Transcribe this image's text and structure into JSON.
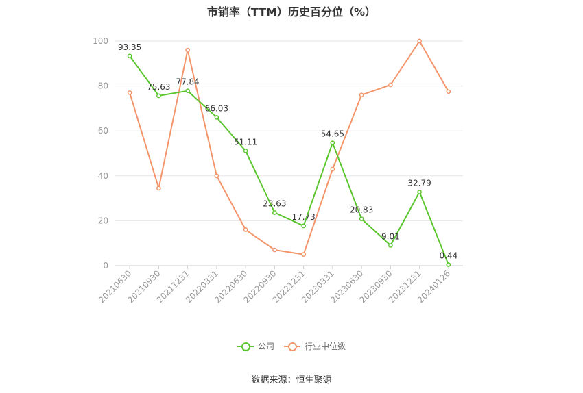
{
  "chart_data": {
    "type": "line",
    "title": "市销率（TTM）历史百分位（%）",
    "categories": [
      "20210630",
      "20210930",
      "20211231",
      "20220331",
      "20220630",
      "20220930",
      "20221231",
      "20230331",
      "20230630",
      "20230930",
      "20231231",
      "20240126"
    ],
    "ylim": [
      0,
      100
    ],
    "yticks": [
      0,
      20,
      40,
      60,
      80,
      100
    ],
    "grid": true,
    "legend_position": "bottom",
    "series": [
      {
        "name": "公司",
        "color": "#5ac52d",
        "show_labels": true,
        "values": [
          93.35,
          75.63,
          77.84,
          66.03,
          51.11,
          23.63,
          17.73,
          54.65,
          20.83,
          9.01,
          32.79,
          0.44
        ]
      },
      {
        "name": "行业中位数",
        "color": "#f4946a",
        "show_labels": false,
        "values": [
          77,
          34.5,
          96,
          40,
          16,
          7,
          5,
          43,
          76,
          80.5,
          100,
          77.5
        ]
      }
    ]
  },
  "legend": {
    "company_label": "公司",
    "industry_label": "行业中位数"
  },
  "footer": {
    "source": "数据来源：恒生聚源"
  }
}
